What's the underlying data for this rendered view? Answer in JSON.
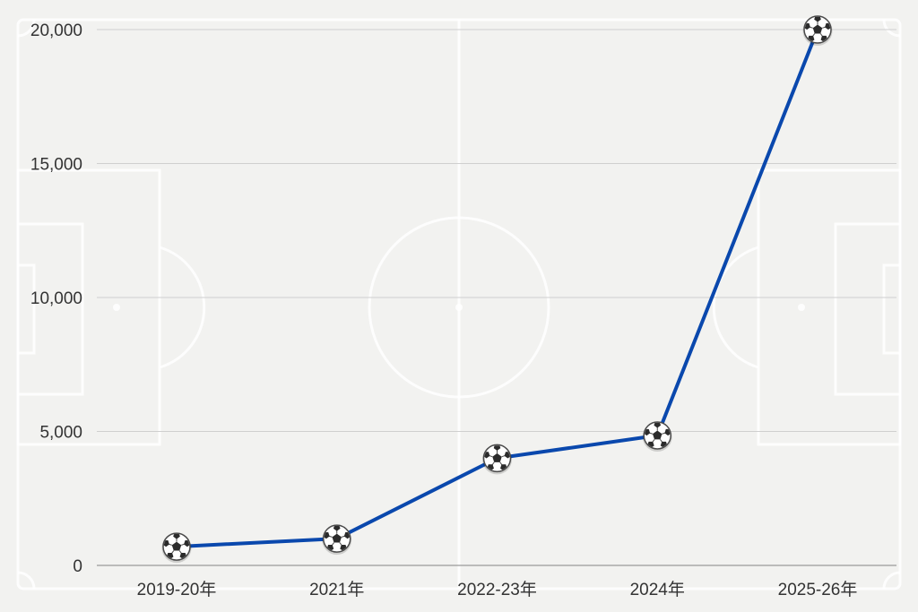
{
  "chart_data": {
    "type": "line",
    "categories": [
      "2019-20年",
      "2021年",
      "2022-23年",
      "2024年",
      "2025-26年"
    ],
    "series": [
      {
        "values": [
          700,
          1000,
          4000,
          4850,
          20000
        ]
      }
    ],
    "ylim": [
      0,
      20000
    ],
    "yticks": [
      0,
      5000,
      10000,
      15000,
      20000
    ],
    "ytick_labels": [
      "0",
      "5,000",
      "10,000",
      "15,000",
      "20,000"
    ],
    "grid": true,
    "marker_icon": "soccer-ball-icon",
    "colors": {
      "line": "#0a48ad",
      "grid": "#cfcfcf",
      "background": "#f2f2f0"
    }
  }
}
